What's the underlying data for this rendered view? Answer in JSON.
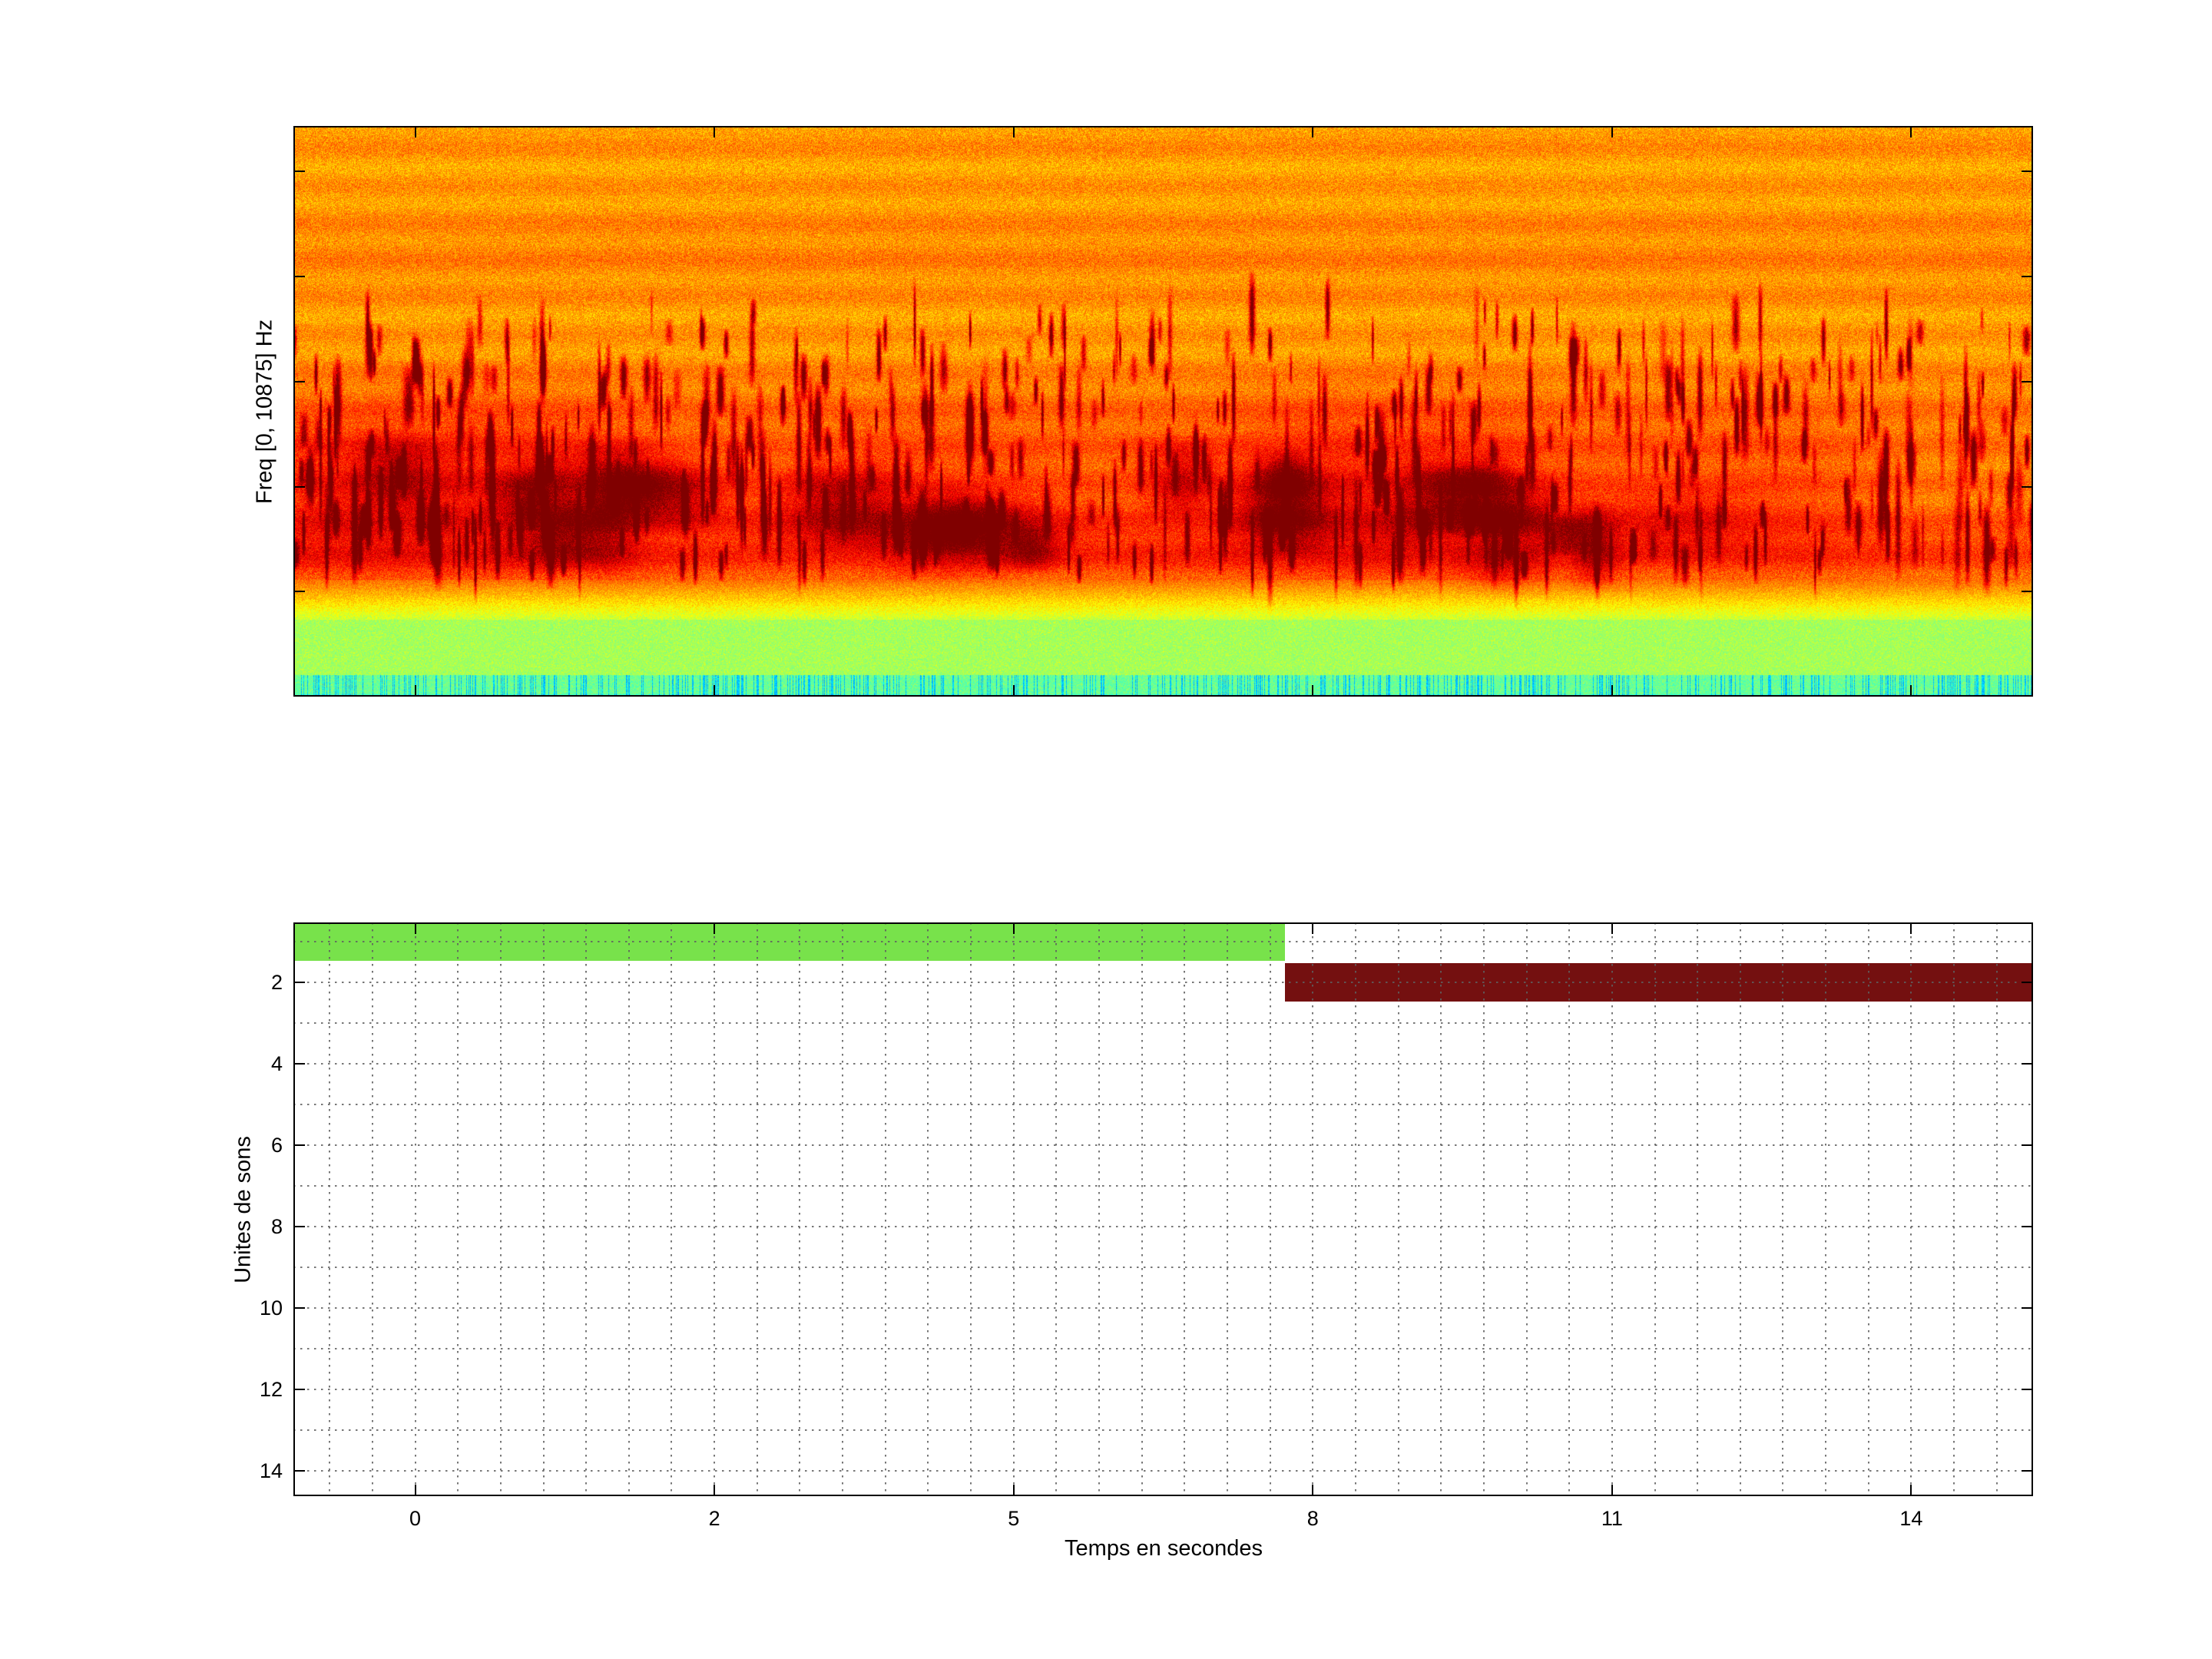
{
  "figure": {
    "background": "#ffffff"
  },
  "chart_data": [
    {
      "type": "heatmap",
      "subplot": "top-spectrogram",
      "title": "",
      "xlabel": "",
      "ylabel": "Freq [0, 10875] Hz",
      "freq_range_hz": [
        0,
        10875
      ],
      "colormap": "jet",
      "x_tick_values": [
        0,
        2,
        5,
        8,
        11,
        14
      ],
      "description": "Audio spectrogram with jet colormap: dense orange-yellow noise across the whole band, dark-red sound-event streaks concentrated in the lower-middle frequencies (strongest band around 55-80% down), a speckled yellow-green low-frequency band near the bottom edge and scattered cyan-blue columns at the very bottom.",
      "appearance": {
        "seed": 1337,
        "streak_count": 560,
        "blob_count": 28,
        "base_value_range": [
          0.665,
          0.8
        ],
        "red_band_center_frac": 0.645,
        "red_band_width_frac": 0.145,
        "green_band_start_frac": 0.865,
        "cyan_band_start_frac": 0.962
      }
    },
    {
      "type": "bar",
      "subplot": "bottom-units",
      "orientation": "horizontal-segments",
      "title": "",
      "xlabel": "Temps en secondes",
      "ylabel": "Unites de sons",
      "x_tick_values": [
        0,
        2,
        5,
        8,
        11,
        14
      ],
      "x_tick_labels": [
        "0",
        "2",
        "5",
        "8",
        "11",
        "14"
      ],
      "y_tick_values": [
        2,
        4,
        6,
        8,
        10,
        12,
        14
      ],
      "y_tick_labels": [
        "2",
        "4",
        "6",
        "8",
        "10",
        "12",
        "14"
      ],
      "ylim": [
        0.53,
        14.62
      ],
      "grid": "dotted",
      "bar_height_units": 0.95,
      "bars": [
        {
          "unit": 1,
          "t_start": -0.85,
          "t_end": 7.72,
          "color": "#78e24b"
        },
        {
          "unit": 2,
          "t_start": 7.72,
          "t_end": 15.25,
          "color": "#741010"
        }
      ]
    }
  ]
}
